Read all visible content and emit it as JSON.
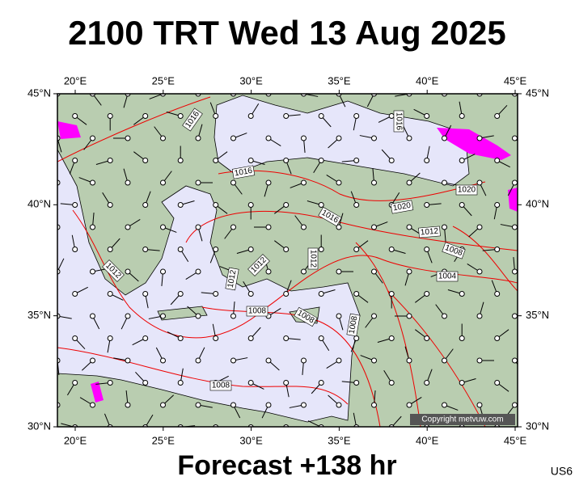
{
  "title": "2100 TRT Wed 13 Aug 2025",
  "footer": "Forecast +138 hr",
  "model": "US6",
  "copyright": "Copyright metvuw.com",
  "lon_ticks": [
    {
      "value": 20,
      "label": "20°E"
    },
    {
      "value": 25,
      "label": "25°E"
    },
    {
      "value": 30,
      "label": "30°E"
    },
    {
      "value": 35,
      "label": "35°E"
    },
    {
      "value": 40,
      "label": "40°E"
    },
    {
      "value": 45,
      "label": "45°E"
    }
  ],
  "lat_ticks": [
    {
      "value": 30,
      "label": "30°N"
    },
    {
      "value": 35,
      "label": "35°N"
    },
    {
      "value": 40,
      "label": "40°N"
    },
    {
      "value": 45,
      "label": "45°N"
    }
  ],
  "isobar_labels": [
    "1016",
    "1016",
    "1016",
    "1020",
    "1020",
    "1016",
    "1012",
    "1012",
    "1012",
    "1012",
    "1008",
    "1004",
    "1008",
    "1008",
    "1008",
    "1012",
    "1008"
  ]
}
